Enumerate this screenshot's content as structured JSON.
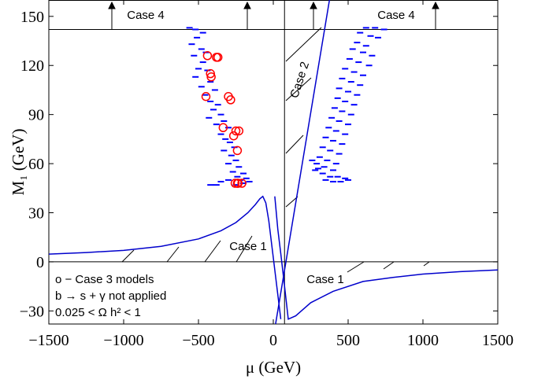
{
  "chart_data": {
    "type": "scatter",
    "xlabel": "μ (GeV)",
    "ylabel": "M₁ (GeV)",
    "xlim": [
      -1500,
      1500
    ],
    "ylim": [
      -38,
      160
    ],
    "xticks": [
      {
        "value": -1500,
        "label": "−1500"
      },
      {
        "value": -1000,
        "label": "−1000"
      },
      {
        "value": -500,
        "label": "−500"
      },
      0,
      500,
      1000,
      1500
    ],
    "yticks": [
      {
        "value": -30,
        "label": "−30"
      },
      0,
      30,
      60,
      90,
      120,
      150
    ],
    "boundaries": {
      "x": [
        75
      ],
      "y": [
        0,
        142
      ]
    },
    "annotations": [
      "Case 4",
      "Case 4",
      "Case 2",
      "Case 1",
      "Case 1",
      "o − Case 3 models",
      "b → s + γ not applied",
      "0.025 < Ω h² < 1"
    ],
    "series": [
      {
        "color": "#0000ff",
        "x": [
          -560,
          -520,
          -470,
          -510,
          -545,
          -480,
          -450,
          -530,
          -470,
          -500,
          -440,
          -520,
          -420,
          -480,
          -390,
          -455,
          -420,
          -370,
          -400,
          -350,
          -430,
          -330,
          -380,
          -300,
          -350,
          -320,
          -290,
          -260,
          -330,
          -280,
          -250,
          -300,
          -230,
          -270,
          -200,
          -240,
          -180,
          -300,
          -350,
          -420,
          -380,
          -250,
          -200,
          -160,
          -220
        ],
        "values": [
          143,
          142,
          140,
          137,
          133,
          130,
          128,
          126,
          122,
          118,
          117,
          113,
          110,
          107,
          105,
          102,
          98,
          96,
          93,
          90,
          88,
          86,
          84,
          82,
          78,
          75,
          73,
          70,
          68,
          65,
          62,
          60,
          58,
          55,
          54,
          52,
          51,
          50,
          49,
          47,
          47,
          47,
          48,
          49,
          50
        ]
      },
      {
        "color": "#0000ff",
        "x": [
          620,
          680,
          740,
          580,
          650,
          700,
          560,
          620,
          530,
          600,
          660,
          510,
          570,
          640,
          480,
          540,
          600,
          460,
          520,
          580,
          440,
          500,
          560,
          430,
          480,
          540,
          410,
          460,
          520,
          390,
          440,
          500,
          370,
          420,
          480,
          350,
          400,
          460,
          330,
          380,
          440,
          310,
          360,
          420,
          290,
          340,
          400,
          280,
          330,
          380,
          430,
          480,
          350,
          400,
          450,
          500,
          300,
          260
        ],
        "values": [
          143,
          143,
          142,
          140,
          138,
          137,
          134,
          132,
          130,
          128,
          126,
          124,
          122,
          120,
          118,
          116,
          114,
          112,
          110,
          108,
          106,
          104,
          102,
          100,
          98,
          96,
          94,
          92,
          90,
          88,
          86,
          84,
          82,
          80,
          78,
          76,
          74,
          72,
          70,
          68,
          66,
          64,
          62,
          60,
          60,
          58,
          56,
          56,
          54,
          52,
          52,
          51,
          50,
          49,
          49,
          50,
          57,
          62
        ]
      },
      {
        "color": "#ff0000",
        "x": [
          -440,
          -380,
          -370,
          -420,
          -415,
          -450,
          -300,
          -285,
          -335,
          -265,
          -250,
          -240,
          -240,
          -255,
          -235,
          -210,
          -230
        ],
        "values": [
          126,
          125,
          125,
          115,
          113,
          101,
          101,
          99,
          82,
          77,
          80,
          68,
          48,
          48,
          48,
          48,
          80
        ]
      }
    ],
    "curves": [
      {
        "color": "#0000cc",
        "x": [
          -1500,
          -1250,
          -1000,
          -750,
          -500,
          -350,
          -250,
          -170,
          -120,
          -90,
          -70,
          -50,
          -30,
          -10,
          10,
          30,
          50
        ],
        "values": [
          4.7,
          5.7,
          7,
          9.5,
          14,
          19,
          24,
          30,
          35,
          38.5,
          40,
          36,
          25,
          10,
          -5,
          -20,
          -35
        ]
      },
      {
        "color": "#0000cc",
        "x": [
          10,
          30,
          50,
          75,
          100,
          150,
          250,
          400,
          600,
          800,
          1000,
          1250,
          1500
        ],
        "values": [
          40,
          20,
          5,
          -15,
          -35,
          -33,
          -25,
          -18,
          -12,
          -9.5,
          -7.5,
          -6,
          -5
        ]
      },
      {
        "color": "#0000cc",
        "x": [
          15,
          375
        ],
        "values": [
          -38,
          160
        ]
      }
    ]
  }
}
